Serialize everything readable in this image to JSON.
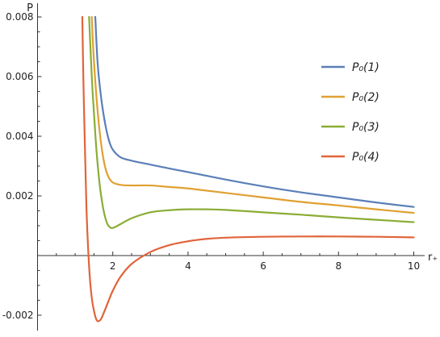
{
  "chart_data": {
    "type": "line",
    "title": "",
    "xlabel": "r₊",
    "ylabel": "P",
    "xlim": [
      0,
      10
    ],
    "ylim": [
      -0.0022,
      0.008
    ],
    "x_ticks": [
      2,
      4,
      6,
      8,
      10
    ],
    "x_tick_labels": [
      "2",
      "4",
      "6",
      "8",
      "10"
    ],
    "y_ticks": [
      -0.002,
      0.002,
      0.004,
      0.006,
      0.008
    ],
    "y_tick_labels": [
      "-0.002",
      "0.002",
      "0.004",
      "0.006",
      "0.008"
    ],
    "grid": false,
    "legend_position": "right",
    "series": [
      {
        "name": "P₀(1)",
        "color": "#5b7fb8",
        "x": [
          1.535,
          1.6,
          1.7,
          1.8,
          1.9,
          2.0,
          2.2,
          2.5,
          3.0,
          3.5,
          4.0,
          5.0,
          6.0,
          7.0,
          8.0,
          9.0,
          10.0
        ],
        "y": [
          0.008,
          0.0064,
          0.0052,
          0.0044,
          0.00385,
          0.00355,
          0.0033,
          0.00318,
          0.00305,
          0.00292,
          0.0028,
          0.00255,
          0.00232,
          0.00212,
          0.00195,
          0.00178,
          0.00163
        ]
      },
      {
        "name": "P₀(2)",
        "color": "#e0a032",
        "x": [
          1.44,
          1.5,
          1.6,
          1.7,
          1.8,
          1.9,
          2.0,
          2.2,
          2.5,
          3.0,
          3.5,
          4.0,
          5.0,
          6.0,
          7.0,
          8.0,
          9.0,
          10.0
        ],
        "y": [
          0.008,
          0.0065,
          0.0048,
          0.00365,
          0.00295,
          0.0026,
          0.00245,
          0.00237,
          0.00235,
          0.00235,
          0.0023,
          0.00225,
          0.0021,
          0.00195,
          0.0018,
          0.00168,
          0.00155,
          0.00143
        ]
      },
      {
        "name": "P₀(3)",
        "color": "#8aad35",
        "x": [
          1.37,
          1.45,
          1.55,
          1.65,
          1.75,
          1.85,
          1.95,
          2.05,
          2.2,
          2.5,
          3.0,
          3.5,
          4.0,
          4.5,
          5.0,
          6.0,
          7.0,
          8.0,
          9.0,
          10.0
        ],
        "y": [
          0.008,
          0.0058,
          0.0038,
          0.0024,
          0.00155,
          0.00108,
          0.00093,
          0.00095,
          0.00105,
          0.00125,
          0.00145,
          0.00152,
          0.00155,
          0.00155,
          0.00153,
          0.00145,
          0.00137,
          0.00128,
          0.0012,
          0.00112
        ]
      },
      {
        "name": "P₀(4)",
        "color": "#e0643a",
        "x": [
          1.19,
          1.22,
          1.26,
          1.3,
          1.35,
          1.4,
          1.45,
          1.5,
          1.55,
          1.6,
          1.65,
          1.7,
          1.8,
          1.9,
          2.0,
          2.2,
          2.5,
          3.0,
          3.5,
          4.0,
          4.5,
          5.0,
          6.0,
          7.0,
          8.0,
          9.0,
          10.0
        ],
        "y": [
          0.008,
          0.0058,
          0.0036,
          0.0016,
          0.0001,
          -0.0009,
          -0.0015,
          -0.00185,
          -0.0021,
          -0.0022,
          -0.00218,
          -0.0021,
          -0.0018,
          -0.00148,
          -0.00118,
          -0.00072,
          -0.00028,
          0.00012,
          0.00035,
          0.00048,
          0.00056,
          0.0006,
          0.00063,
          0.00064,
          0.00064,
          0.00063,
          0.00061
        ]
      }
    ]
  }
}
